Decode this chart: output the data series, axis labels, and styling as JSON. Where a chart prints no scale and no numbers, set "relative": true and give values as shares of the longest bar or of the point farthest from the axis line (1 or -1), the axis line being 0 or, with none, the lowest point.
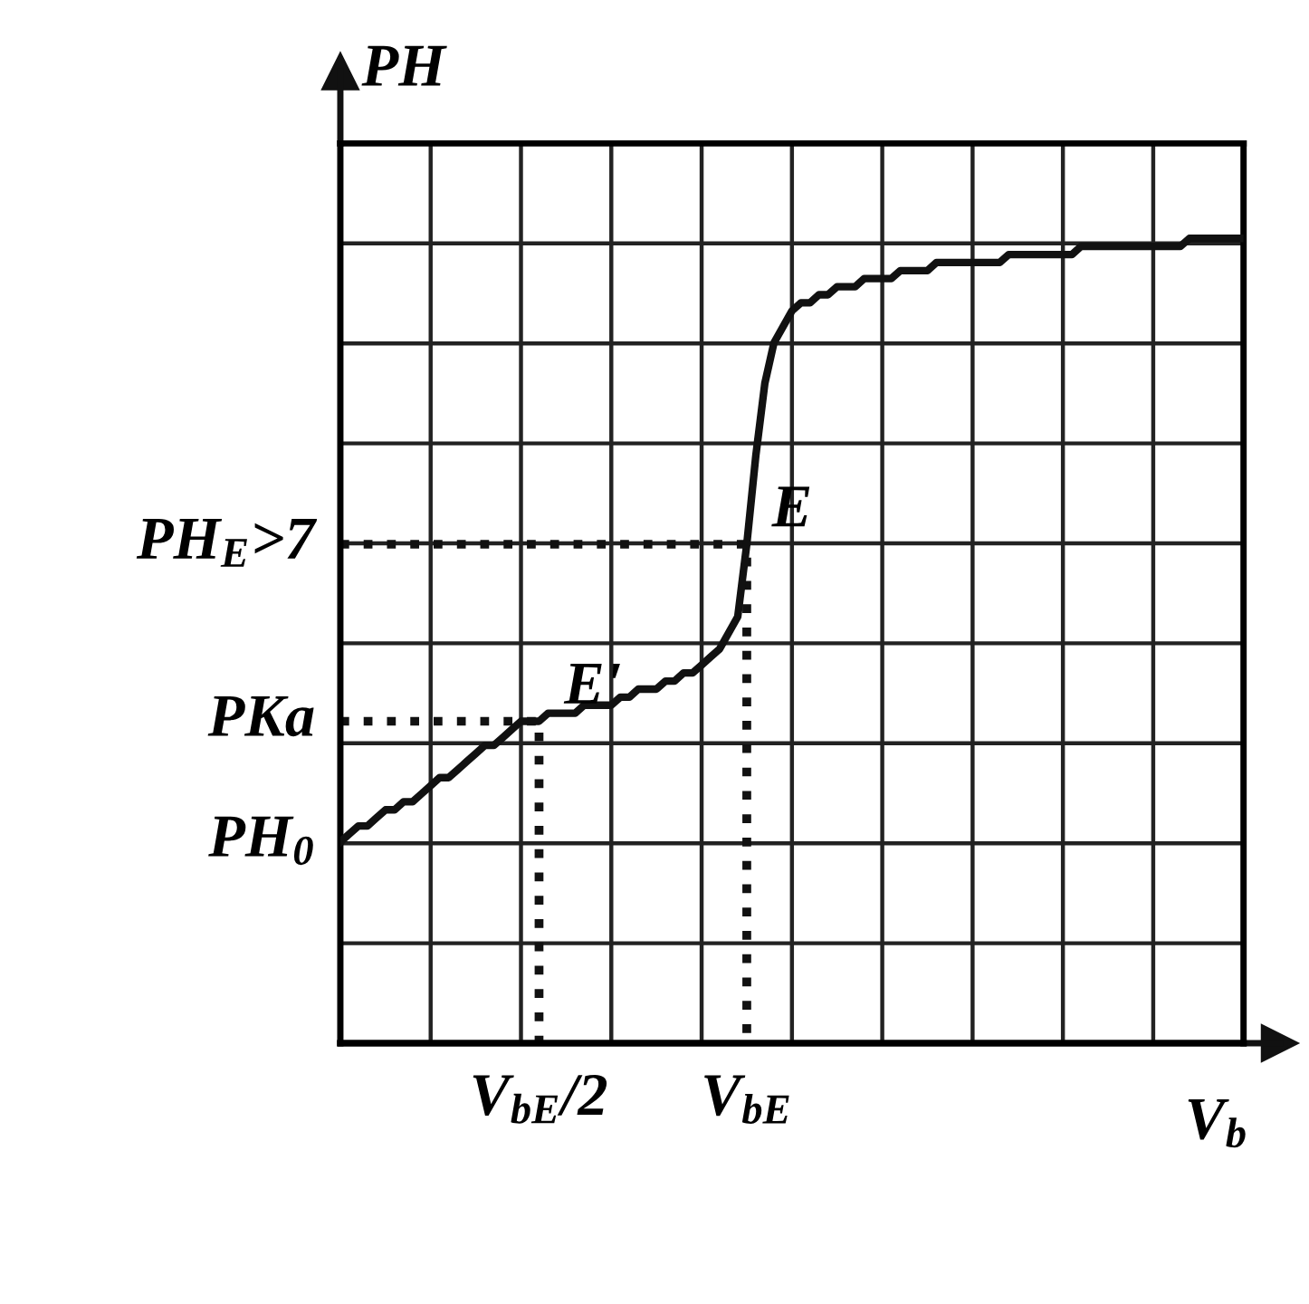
{
  "chart_data": {
    "type": "line",
    "relative": true,
    "xlabel": "V$_{b}$",
    "ylabel": "PH",
    "grid": true,
    "categories": [
      null,
      null,
      null,
      null,
      null,
      null,
      null,
      null,
      null,
      null,
      null,
      null,
      null,
      null,
      null,
      null,
      null,
      null,
      null,
      null,
      null,
      null,
      null,
      null,
      null,
      null,
      null,
      null,
      null,
      null,
      null,
      null,
      null,
      null,
      null,
      null,
      null,
      null,
      null,
      null,
      null,
      null,
      null,
      null,
      null,
      null,
      null,
      null,
      null,
      null,
      null,
      null,
      null,
      null,
      null,
      null,
      null,
      null,
      null,
      null,
      null,
      null,
      null,
      null,
      null,
      null,
      null,
      null,
      null,
      null,
      null,
      null,
      null,
      null,
      null,
      null,
      null,
      null,
      null,
      null,
      null,
      null,
      null,
      null,
      null,
      null,
      null,
      null,
      null,
      null,
      null,
      null,
      null,
      null,
      null,
      null,
      null,
      null,
      null,
      null,
      null
    ],
    "series": [
      {
        "color": "#111111",
        "values": [
          0.25,
          0.26,
          0.27,
          0.27,
          0.28,
          0.29,
          0.29,
          0.3,
          0.3,
          0.31,
          0.32,
          0.33,
          0.33,
          0.34,
          0.35,
          0.36,
          0.37,
          0.37,
          0.38,
          0.39,
          0.4,
          0.4,
          0.4,
          0.41,
          0.41,
          0.41,
          0.41,
          0.42,
          0.42,
          0.42,
          0.42,
          0.43,
          0.43,
          0.44,
          0.44,
          0.44,
          0.45,
          0.45,
          0.46,
          0.46,
          0.47,
          0.48,
          0.49,
          0.51,
          0.53,
          0.62,
          0.73,
          0.82,
          0.87,
          0.89,
          0.91,
          0.92,
          0.92,
          0.93,
          0.93,
          0.94,
          0.94,
          0.94,
          0.95,
          0.95,
          0.95,
          0.95,
          0.96,
          0.96,
          0.96,
          0.96,
          0.97,
          0.97,
          0.97,
          0.97,
          0.97,
          0.97,
          0.97,
          0.97,
          0.98,
          0.98,
          0.98,
          0.98,
          0.98,
          0.98,
          0.98,
          0.98,
          0.99,
          0.99,
          0.99,
          0.99,
          0.99,
          0.99,
          0.99,
          0.99,
          0.99,
          0.99,
          0.99,
          0.99,
          1,
          1,
          1,
          1,
          1,
          1,
          1
        ]
      }
    ],
    "annotations": [
      "E",
      "E'",
      "PH$_{E}$>7",
      "PKa",
      "PH$_{0}$",
      "V$_{bE}$/2",
      "V$_{bE}$"
    ]
  }
}
